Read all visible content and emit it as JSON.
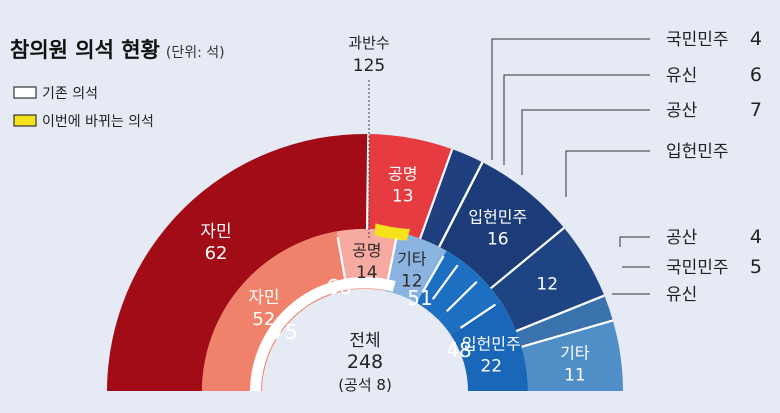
{
  "chart_data": {
    "type": "pie",
    "title": "참의원 의석 현황",
    "unit_note": "(단위: 석)",
    "legend": [
      {
        "label": "기존 의석",
        "color": "#ffffff"
      },
      {
        "label": "이번에 바뀌는 의석",
        "color": "#f5e21b"
      }
    ],
    "majority": {
      "label": "과반수",
      "value": 125
    },
    "total": {
      "label": "전체",
      "value": 248,
      "note": "(공석 8)"
    },
    "outer_ring": {
      "label": "기존 의석",
      "segments": [
        {
          "name": "자민",
          "value": 62,
          "color": "#a20c16"
        },
        {
          "name": "공명",
          "value": 13,
          "color": "#e53b41"
        },
        {
          "name": "국민민주",
          "value": 5,
          "color": "#1f3f7e"
        },
        {
          "name": "유신",
          "value": 0,
          "color": "#1c3b76"
        },
        {
          "name": "입헌민주",
          "value": 16,
          "color": "#1b3c78"
        },
        {
          "name": "",
          "value": 12,
          "color": "#1f4484"
        },
        {
          "name": "공산",
          "value": 4,
          "color": "#3a72ad"
        },
        {
          "name": "기타",
          "value": 11,
          "color": "#4f8ec7"
        }
      ]
    },
    "inner_ring": {
      "label": "이번에 바뀌는 의석",
      "segments": [
        {
          "name": "자민",
          "value": 52,
          "color": "#f0826b"
        },
        {
          "name": "공명",
          "value": 14,
          "color": "#f6aaa1"
        },
        {
          "name": "기타",
          "value": 12,
          "color": "#8ab3df"
        },
        {
          "name": "국민민주",
          "value": 4,
          "color": "#1d6fc1"
        },
        {
          "name": "유신",
          "value": 6,
          "color": "#1d6fc1"
        },
        {
          "name": "공산",
          "value": 7,
          "color": "#1d6fc1"
        },
        {
          "name": "입헌민주",
          "value": 22,
          "color": "#1a66b8"
        }
      ]
    },
    "center_totals": [
      {
        "name": "outer-ruling-total",
        "value": 75
      },
      {
        "name": "inner-ruling-total",
        "value": 66
      },
      {
        "name": "inner-opposition-total",
        "value": 51
      },
      {
        "name": "outer-opposition-total",
        "value": 48
      }
    ],
    "callouts": [
      {
        "name": "국민민주",
        "value": 4
      },
      {
        "name": "유신",
        "value": 6
      },
      {
        "name": "공산",
        "value": 7
      },
      {
        "name": "입헌민주",
        "value": ""
      },
      {
        "name": "공산",
        "value": 4
      },
      {
        "name": "국민민주",
        "value": 5
      },
      {
        "name": "유신",
        "value": ""
      }
    ]
  }
}
